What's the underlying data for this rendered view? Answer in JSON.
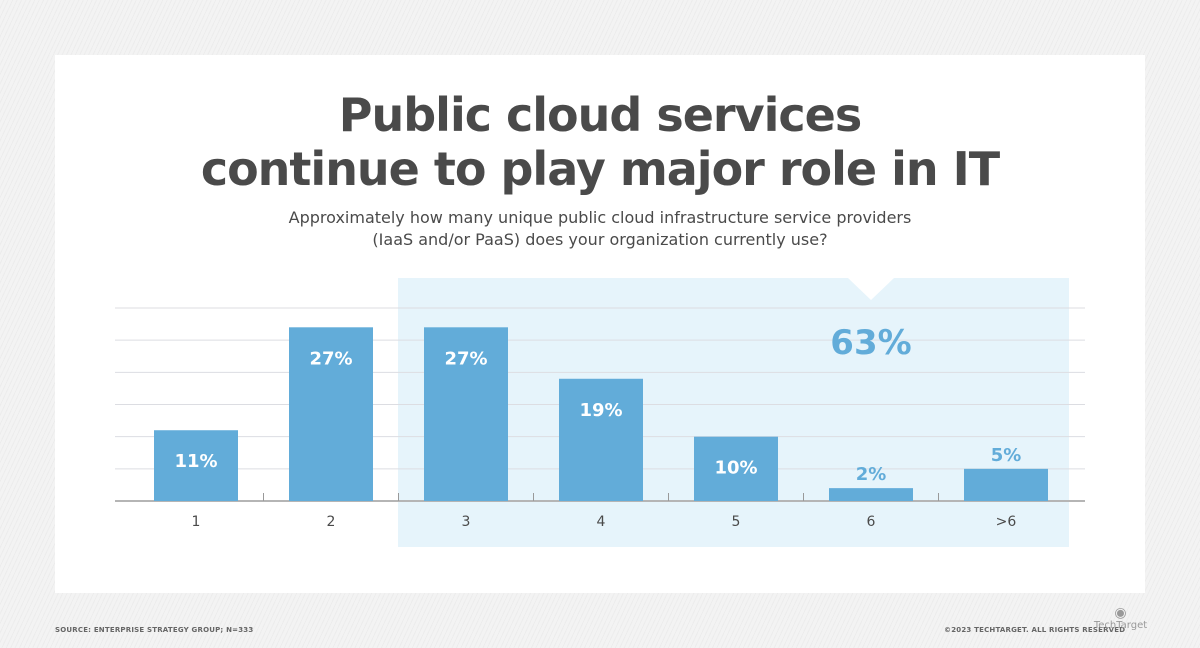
{
  "title_line1": "Public cloud services",
  "title_line2": "continue to play major role in IT",
  "subtitle_line1": "Approximately how many unique public cloud infrastructure service providers",
  "subtitle_line2": "(IaaS and/or PaaS) does your organization currently use?",
  "source": "SOURCE: ENTERPRISE STRATEGY GROUP; N=333",
  "copyright": "©2023 TECHTARGET. ALL RIGHTS RESERVED",
  "logo_text": "TechTarget",
  "colors": {
    "bar": "#62acd9",
    "highlight": "#e6f4fb",
    "text": "#4a4a4a"
  },
  "chart_data": {
    "type": "bar",
    "title": "Public cloud services continue to play major role in IT",
    "categories": [
      "1",
      "2",
      "3",
      "4",
      "5",
      "6",
      ">6"
    ],
    "values": [
      11,
      27,
      27,
      19,
      10,
      2,
      5
    ],
    "data_labels": [
      "11%",
      "27%",
      "27%",
      "19%",
      "10%",
      "2%",
      "5%"
    ],
    "ylim": [
      0,
      30
    ],
    "grid": true,
    "highlight": {
      "categories": [
        "3",
        "4",
        "5",
        "6",
        ">6"
      ],
      "label": "63%"
    }
  }
}
